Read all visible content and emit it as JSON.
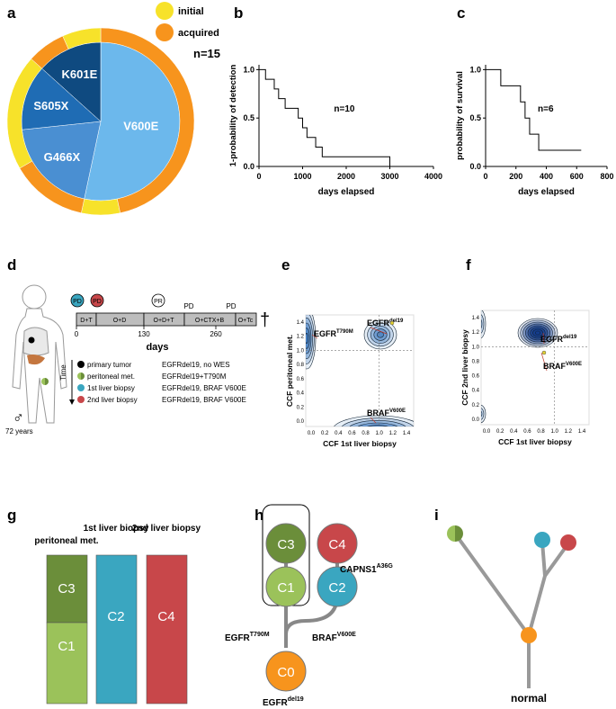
{
  "panel_labels": [
    "a",
    "b",
    "c",
    "d",
    "e",
    "f",
    "g",
    "h",
    "i"
  ],
  "chart_data": [
    {
      "type": "pie",
      "annotation": "n=15",
      "categories": [
        "V600E",
        "G466X",
        "S605X",
        "K601E"
      ],
      "values": [
        8,
        3,
        2,
        2
      ],
      "colors": [
        "#6cb8ec",
        "#4a8fd2",
        "#1f6cb4",
        "#0f4a80"
      ]
    },
    {
      "type": "donut",
      "categories": [
        "acquired",
        "initial",
        "acquired",
        "initial",
        "acquired",
        "initial"
      ],
      "values": [
        7,
        1,
        2,
        3,
        1,
        1
      ],
      "colors": {
        "initial": "#f7e22a",
        "acquired": "#f7941d"
      }
    },
    {
      "type": "step",
      "ylabel": "1-probability of detection",
      "xlabel": "days elapsed",
      "annotation": "n=10",
      "color": "#000000",
      "x": [
        0,
        150,
        350,
        450,
        600,
        900,
        1000,
        1100,
        1300,
        1450,
        3000
      ],
      "values": [
        1,
        0.9,
        0.8,
        0.7,
        0.6,
        0.5,
        0.4,
        0.3,
        0.2,
        0.1,
        0
      ],
      "xlim": [
        0,
        4000
      ],
      "xticks": [
        0,
        1000,
        2000,
        3000,
        4000
      ],
      "ylim": [
        0,
        1.05
      ],
      "yticks": [
        {
          "value": 0,
          "label": "0.0"
        },
        0.5,
        {
          "value": 1,
          "label": "1.0"
        }
      ]
    },
    {
      "type": "step",
      "ylabel": "probability of survival",
      "xlabel": "days elapsed",
      "annotation": "n=6",
      "color": "#000000",
      "x": [
        0,
        100,
        230,
        260,
        290,
        350,
        630
      ],
      "values": [
        1,
        0.833,
        0.667,
        0.5,
        0.333,
        0.167,
        0.167
      ],
      "xlim": [
        0,
        800
      ],
      "xticks": [
        0,
        200,
        400,
        600,
        800
      ],
      "ylim": [
        0,
        1.05
      ],
      "yticks": [
        {
          "value": 0,
          "label": "0.0"
        },
        0.5,
        {
          "value": 1,
          "label": "1.0"
        }
      ]
    }
  ],
  "panel_d": {
    "age": "72 years",
    "sex": "♂",
    "time": "Time",
    "days": "days",
    "death": "†",
    "segments": [
      "D+T",
      "O+D",
      "O+D+T",
      "O+CTX+B",
      "O+Tc"
    ],
    "events": [
      "PD",
      "PD",
      "PR",
      "PD",
      "PD"
    ],
    "axis": [
      "0",
      "130",
      "260"
    ],
    "legend": [
      {
        "label": "primary tumor",
        "detail": "EGFRdel19, no WES"
      },
      {
        "label": "peritoneal met.",
        "detail": "EGFRdel19+T790M"
      },
      {
        "label": "1st liver biopsy",
        "detail": "EGFRdel19, BRAF V600E"
      },
      {
        "label": "2nd liver biopsy",
        "detail": "EGFRdel19, BRAF V600E"
      }
    ]
  },
  "panel_e": {
    "xlabel": "CCF 1st liver biopsy",
    "ylabel": "CCF peritoneal met.",
    "xticks": [
      "0.0",
      "0.2",
      "0.4",
      "0.6",
      "0.8",
      "1.0",
      "1.2",
      "1.4"
    ],
    "yticks": [
      "0.0",
      "0.2",
      "0.4",
      "0.6",
      "0.8",
      "1.0",
      "1.2",
      "1.4"
    ],
    "annotations": [
      {
        "base": "EGFR",
        "sup": "T790M"
      },
      {
        "base": "EGFR",
        "sup": "del19"
      },
      {
        "base": "BRAF",
        "sup": "V600E"
      }
    ]
  },
  "panel_f": {
    "xlabel": "CCF 1st liver biopsy",
    "ylabel": "CCF 2nd liver biopsy",
    "xticks": [
      "0.0",
      "0.2",
      "0.4",
      "0.6",
      "0.8",
      "1.0",
      "1.2",
      "1.4"
    ],
    "yticks": [
      "0.0",
      "0.2",
      "0.4",
      "0.6",
      "0.8",
      "1.0",
      "1.2",
      "1.4"
    ],
    "annotations": [
      {
        "base": "EGFR",
        "sup": "del19"
      },
      {
        "base": "BRAF",
        "sup": "V600E"
      }
    ]
  },
  "panel_g": {
    "headers": [
      "peritoneal met.",
      "1st liver biopsy",
      "2nd liver biopsy"
    ],
    "clones": [
      "C3",
      "C1",
      "C2",
      "C4"
    ]
  },
  "panel_h": {
    "nodes": [
      "C3",
      "C1",
      "C4",
      "C2",
      "C0"
    ],
    "labels": [
      {
        "base": "CAPNS1",
        "sup": "A36G"
      },
      {
        "base": "EGFR",
        "sup": "T790M"
      },
      {
        "base": "BRAF",
        "sup": "V600E"
      },
      {
        "base": "EGFR",
        "sup": "del19"
      }
    ]
  },
  "panel_i": {
    "root": "normal"
  }
}
